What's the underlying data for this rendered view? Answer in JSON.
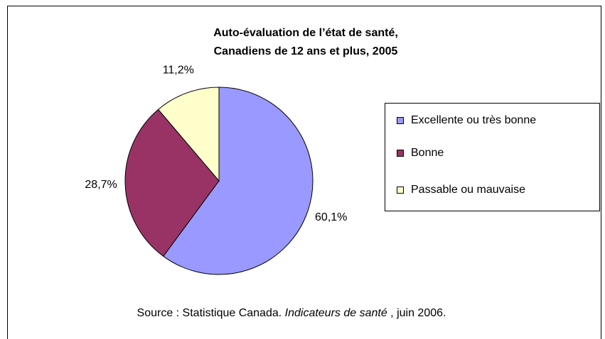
{
  "chart_data": {
    "type": "pie",
    "title": [
      "Auto-évaluation de l’état de santé,",
      "Canadiens de 12 ans et plus, 2005"
    ],
    "categories": [
      "Excellente ou très bonne",
      "Bonne",
      "Passable ou mauvaise"
    ],
    "values": [
      60.1,
      28.7,
      11.2
    ],
    "value_labels": [
      "60,1%",
      "28,7%",
      "11,2%"
    ],
    "colors": [
      "#9999ff",
      "#993366",
      "#ffffcc"
    ],
    "legend": "right",
    "source": [
      "Source : Statistique Canada. ",
      "Indicateurs de santé",
      " ,  juin 2006."
    ]
  }
}
